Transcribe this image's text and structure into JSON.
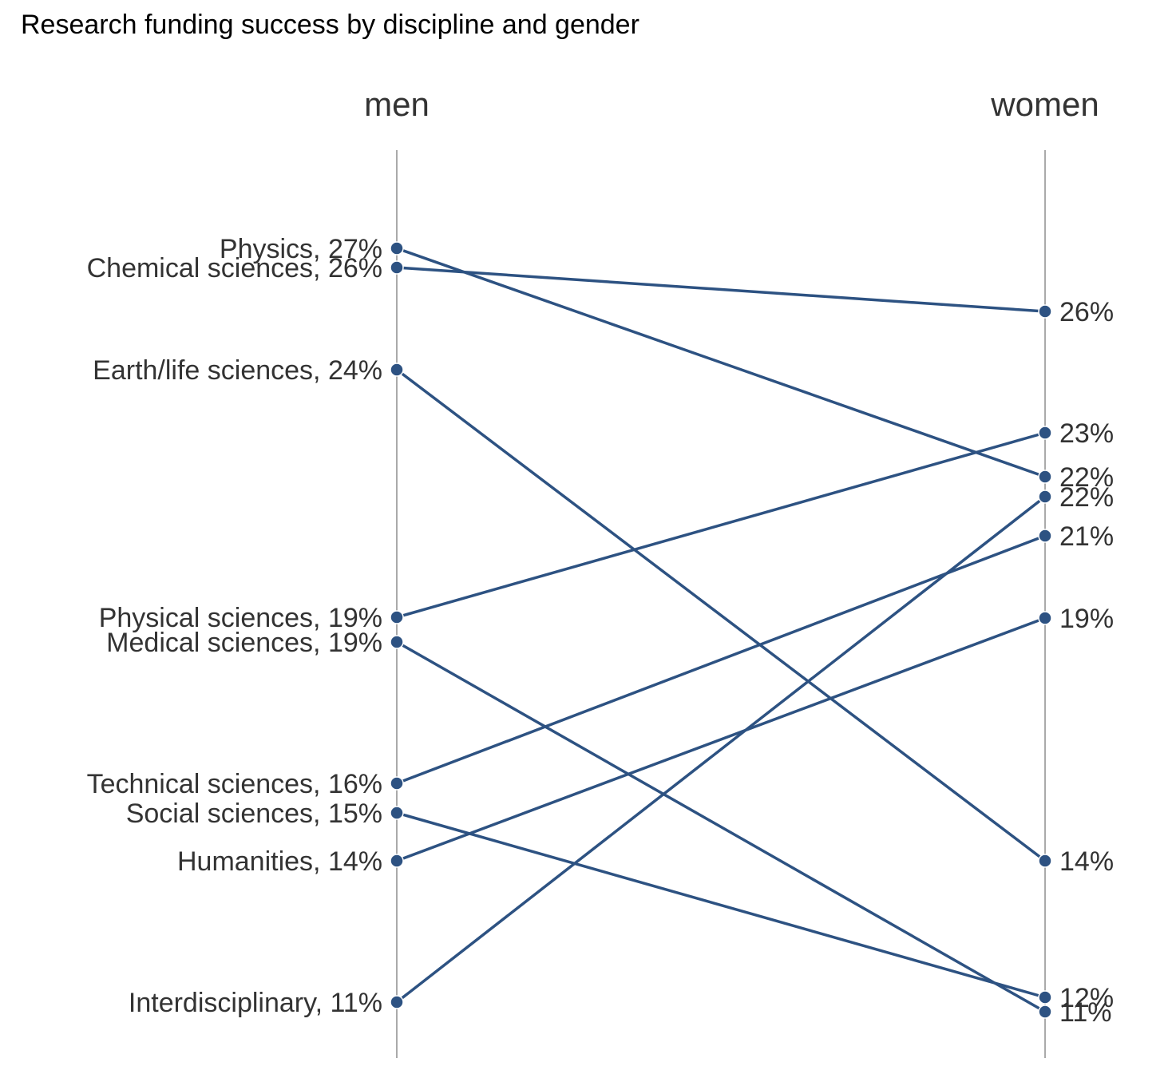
{
  "chart_data": {
    "type": "slope",
    "title": "Research funding success by discipline and gender",
    "columns": [
      "men",
      "women"
    ],
    "series": [
      {
        "name": "Physics",
        "values": [
          27,
          22
        ]
      },
      {
        "name": "Chemical sciences",
        "values": [
          26,
          26
        ]
      },
      {
        "name": "Earth/life sciences",
        "values": [
          24,
          14
        ]
      },
      {
        "name": "Physical sciences",
        "values": [
          19,
          23
        ]
      },
      {
        "name": "Medical sciences",
        "values": [
          19,
          11
        ]
      },
      {
        "name": "Technical sciences",
        "values": [
          16,
          21
        ]
      },
      {
        "name": "Social sciences",
        "values": [
          15,
          12
        ]
      },
      {
        "name": "Humanities",
        "values": [
          14,
          19
        ]
      },
      {
        "name": "Interdisciplinary",
        "values": [
          11,
          22
        ]
      }
    ],
    "left_labels": [
      "Physics, 27%",
      "Chemical sciences, 26%",
      "Earth/life sciences, 24%",
      "Physical sciences, 19%",
      "Medical sciences, 19%",
      "Technical sciences, 16%",
      "Social sciences, 15%",
      "Humanities, 14%",
      "Interdisciplinary, 11%"
    ],
    "right_labels": [
      "22%",
      "26%",
      "14%",
      "23%",
      "11%",
      "21%",
      "12%",
      "19%",
      "22%"
    ],
    "unit": "%",
    "colors": {
      "line": "#2d5282",
      "axis": "#aaaaaa",
      "text": "#333333"
    }
  }
}
